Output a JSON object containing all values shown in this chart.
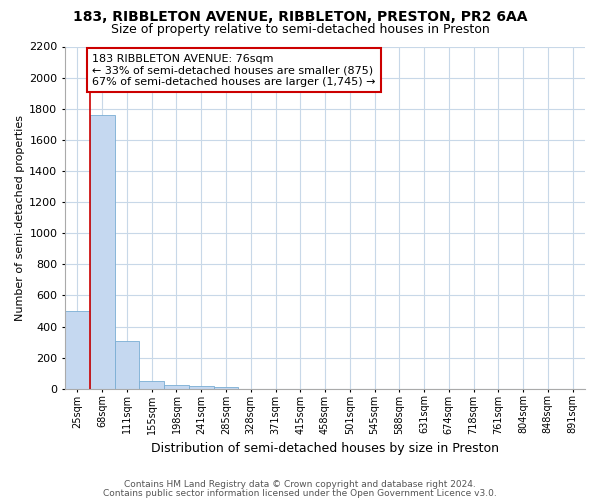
{
  "title1": "183, RIBBLETON AVENUE, RIBBLETON, PRESTON, PR2 6AA",
  "title2": "Size of property relative to semi-detached houses in Preston",
  "xlabel": "Distribution of semi-detached houses by size in Preston",
  "ylabel": "Number of semi-detached properties",
  "categories": [
    "25sqm",
    "68sqm",
    "111sqm",
    "155sqm",
    "198sqm",
    "241sqm",
    "285sqm",
    "328sqm",
    "371sqm",
    "415sqm",
    "458sqm",
    "501sqm",
    "545sqm",
    "588sqm",
    "631sqm",
    "674sqm",
    "718sqm",
    "761sqm",
    "804sqm",
    "848sqm",
    "891sqm"
  ],
  "values": [
    500,
    1760,
    305,
    47,
    25,
    15,
    8,
    0,
    0,
    0,
    0,
    0,
    0,
    0,
    0,
    0,
    0,
    0,
    0,
    0,
    0
  ],
  "bar_color": "#c5d8f0",
  "bar_edge_color": "#7aadd4",
  "ylim": [
    0,
    2200
  ],
  "yticks": [
    0,
    200,
    400,
    600,
    800,
    1000,
    1200,
    1400,
    1600,
    1800,
    2000,
    2200
  ],
  "property_line_x": 0.5,
  "property_line_color": "#cc0000",
  "annotation_line1": "183 RIBBLETON AVENUE: 76sqm",
  "annotation_line2": "← 33% of semi-detached houses are smaller (875)",
  "annotation_line3": "67% of semi-detached houses are larger (1,745) →",
  "annotation_box_color": "#cc0000",
  "annotation_text_color": "#000000",
  "background_color": "#ffffff",
  "plot_bg_color": "#ffffff",
  "grid_color": "#c8d8e8",
  "footer1": "Contains HM Land Registry data © Crown copyright and database right 2024.",
  "footer2": "Contains public sector information licensed under the Open Government Licence v3.0."
}
